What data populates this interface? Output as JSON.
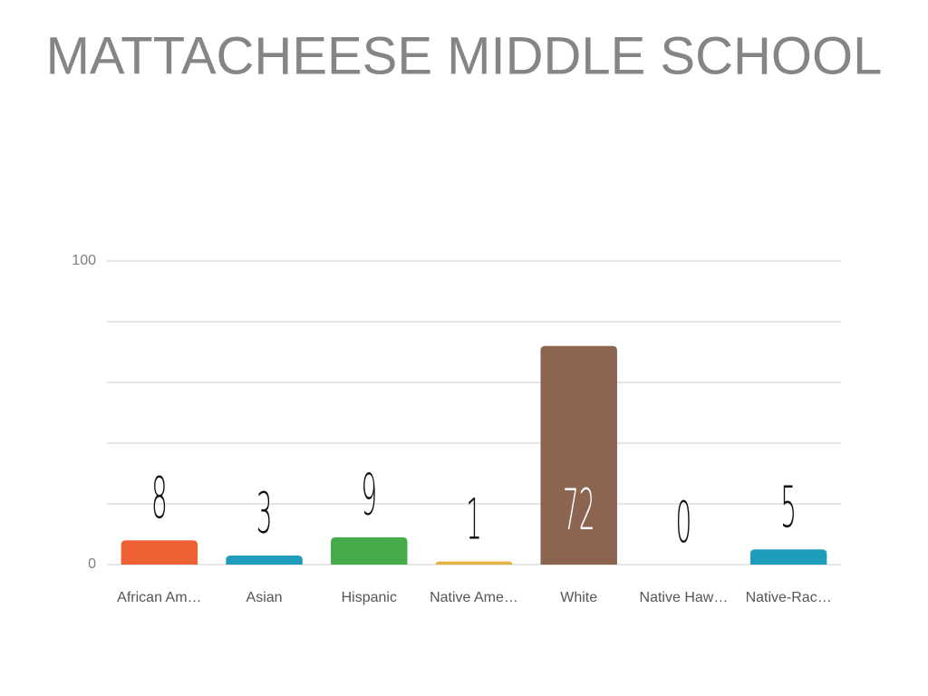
{
  "chart_data": {
    "type": "bar",
    "title": "MATTACHEESE MIDDLE SCHOOL",
    "categories": [
      "African Am…",
      "Asian",
      "Hispanic",
      "Native Ame…",
      "White",
      "Native Haw…",
      "Native-Rac…"
    ],
    "values": [
      8,
      3,
      9,
      1,
      72,
      0,
      5
    ],
    "colors": [
      "#ee6135",
      "#1e9cb9",
      "#46ab4b",
      "#e2b43e",
      "#8b6550",
      "#7a7a7a",
      "#1e9cb9"
    ],
    "ylim": [
      0,
      100
    ],
    "yticks": [
      0,
      100
    ],
    "grid_lines": [
      20,
      40,
      60,
      80
    ],
    "grid": true
  }
}
